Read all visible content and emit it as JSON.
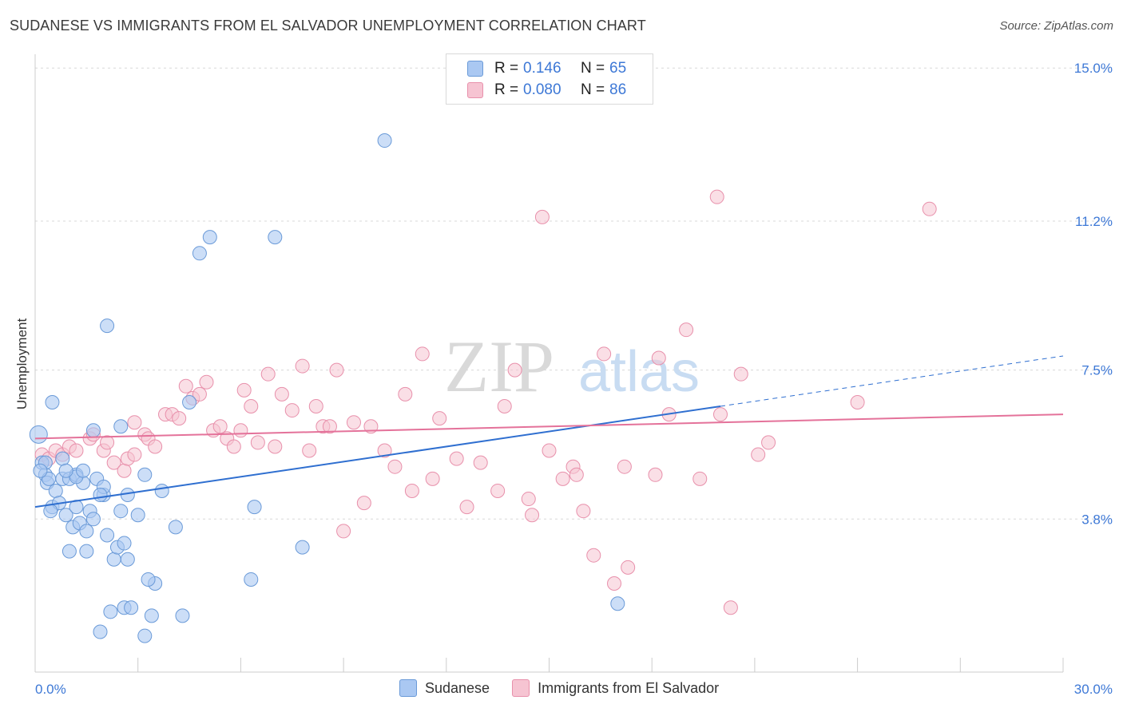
{
  "title": "SUDANESE VS IMMIGRANTS FROM EL SALVADOR UNEMPLOYMENT CORRELATION CHART",
  "source": "Source: ZipAtlas.com",
  "watermark_zip": "ZIP",
  "watermark_atlas": "atlas",
  "legend_top": {
    "rows": [
      {
        "r_label": "R =",
        "r_value": "0.146",
        "n_label": "N =",
        "n_value": "65"
      },
      {
        "r_label": "R =",
        "r_value": "0.080",
        "n_label": "N =",
        "n_value": "86"
      }
    ]
  },
  "legend_bottom": {
    "items": [
      {
        "label": "Sudanese"
      },
      {
        "label": "Immigrants from El Salvador"
      }
    ]
  },
  "colors": {
    "blue_fill": "#aac8f2",
    "blue_stroke": "#6a9ad8",
    "blue_line": "#2f6fd0",
    "pink_fill": "#f6c4d2",
    "pink_stroke": "#e890ab",
    "pink_line": "#e4729a",
    "tick_text": "#3d78d6",
    "grid": "#d8d8d8"
  },
  "chart_data": {
    "type": "scatter",
    "title": "SUDANESE VS IMMIGRANTS FROM EL SALVADOR UNEMPLOYMENT CORRELATION CHART",
    "xlabel": "",
    "ylabel": "Unemployment",
    "xlim": [
      0,
      30
    ],
    "ylim": [
      0,
      15.5
    ],
    "x_tick_labels": [
      "0.0%",
      "30.0%"
    ],
    "y_ticks": [
      3.8,
      7.5,
      11.2,
      15.0
    ],
    "y_tick_labels": [
      "3.8%",
      "7.5%",
      "11.2%",
      "15.0%"
    ],
    "grid": true,
    "legend_position": "top-center",
    "series": [
      {
        "name": "Sudanese",
        "color": "#aac8f2",
        "trend": {
          "x": [
            0,
            20
          ],
          "y": [
            4.1,
            6.6
          ],
          "extended_x": [
            20,
            30
          ],
          "extended_y": [
            6.6,
            7.85
          ]
        },
        "points": [
          [
            0.1,
            5.9
          ],
          [
            0.2,
            5.2
          ],
          [
            0.3,
            4.9
          ],
          [
            0.35,
            4.7
          ],
          [
            0.4,
            4.8
          ],
          [
            0.5,
            4.1
          ],
          [
            0.6,
            4.5
          ],
          [
            0.7,
            4.2
          ],
          [
            0.8,
            4.8
          ],
          [
            0.9,
            3.9
          ],
          [
            1.0,
            4.8
          ],
          [
            1.1,
            3.6
          ],
          [
            1.2,
            4.1
          ],
          [
            1.0,
            3.0
          ],
          [
            1.2,
            4.9
          ],
          [
            1.3,
            3.7
          ],
          [
            1.4,
            4.7
          ],
          [
            1.5,
            3.5
          ],
          [
            1.6,
            4.0
          ],
          [
            1.5,
            3.0
          ],
          [
            1.7,
            3.8
          ],
          [
            1.8,
            4.8
          ],
          [
            1.9,
            1.0
          ],
          [
            2.0,
            4.4
          ],
          [
            2.1,
            3.4
          ],
          [
            2.2,
            1.5
          ],
          [
            2.3,
            2.8
          ],
          [
            2.4,
            3.1
          ],
          [
            2.5,
            6.1
          ],
          [
            2.6,
            1.6
          ],
          [
            2.5,
            4.0
          ],
          [
            2.6,
            3.2
          ],
          [
            2.8,
            1.6
          ],
          [
            2.7,
            4.4
          ],
          [
            2.0,
            4.6
          ],
          [
            0.5,
            6.7
          ],
          [
            1.7,
            6.0
          ],
          [
            2.1,
            8.6
          ],
          [
            3.2,
            0.9
          ],
          [
            3.0,
            3.9
          ],
          [
            3.2,
            4.9
          ],
          [
            3.4,
            1.4
          ],
          [
            3.5,
            2.2
          ],
          [
            3.7,
            4.5
          ],
          [
            4.1,
            3.6
          ],
          [
            4.3,
            1.4
          ],
          [
            4.5,
            6.7
          ],
          [
            4.8,
            10.4
          ],
          [
            5.1,
            10.8
          ],
          [
            6.3,
            2.3
          ],
          [
            6.4,
            4.1
          ],
          [
            7.0,
            10.8
          ],
          [
            7.8,
            3.1
          ],
          [
            10.2,
            13.2
          ],
          [
            17.0,
            1.7
          ],
          [
            0.8,
            5.3
          ],
          [
            0.3,
            5.2
          ],
          [
            1.2,
            4.85
          ],
          [
            0.45,
            4.0
          ],
          [
            0.9,
            5.0
          ],
          [
            1.4,
            5.0
          ],
          [
            2.7,
            2.8
          ],
          [
            3.3,
            2.3
          ],
          [
            0.15,
            5.0
          ],
          [
            1.9,
            4.4
          ]
        ]
      },
      {
        "name": "Immigrants from El Salvador",
        "color": "#f6c4d2",
        "trend": {
          "x": [
            0,
            30
          ],
          "y": [
            5.8,
            6.4
          ]
        },
        "points": [
          [
            0.2,
            5.4
          ],
          [
            0.4,
            5.3
          ],
          [
            0.6,
            5.5
          ],
          [
            0.8,
            5.4
          ],
          [
            1.0,
            5.6
          ],
          [
            1.2,
            5.5
          ],
          [
            1.6,
            5.8
          ],
          [
            1.7,
            5.9
          ],
          [
            2.0,
            5.5
          ],
          [
            2.1,
            5.7
          ],
          [
            2.3,
            5.2
          ],
          [
            2.6,
            5.0
          ],
          [
            2.7,
            5.3
          ],
          [
            2.9,
            6.2
          ],
          [
            3.2,
            5.9
          ],
          [
            3.3,
            5.8
          ],
          [
            3.5,
            5.6
          ],
          [
            3.8,
            6.4
          ],
          [
            4.0,
            6.4
          ],
          [
            4.2,
            6.3
          ],
          [
            4.4,
            7.1
          ],
          [
            4.6,
            6.8
          ],
          [
            4.8,
            6.9
          ],
          [
            5.0,
            7.2
          ],
          [
            5.2,
            6.0
          ],
          [
            5.4,
            6.1
          ],
          [
            5.6,
            5.8
          ],
          [
            5.8,
            5.6
          ],
          [
            6.1,
            7.0
          ],
          [
            6.3,
            6.6
          ],
          [
            6.5,
            5.7
          ],
          [
            6.8,
            7.4
          ],
          [
            7.0,
            5.6
          ],
          [
            7.2,
            6.9
          ],
          [
            7.5,
            6.5
          ],
          [
            7.8,
            7.6
          ],
          [
            8.0,
            5.5
          ],
          [
            8.2,
            6.6
          ],
          [
            8.4,
            6.1
          ],
          [
            8.6,
            6.1
          ],
          [
            8.8,
            7.5
          ],
          [
            9.0,
            3.5
          ],
          [
            9.3,
            6.2
          ],
          [
            9.6,
            4.2
          ],
          [
            9.8,
            6.1
          ],
          [
            10.2,
            5.5
          ],
          [
            10.5,
            5.1
          ],
          [
            10.8,
            6.9
          ],
          [
            11.0,
            4.5
          ],
          [
            11.3,
            7.9
          ],
          [
            11.6,
            4.8
          ],
          [
            11.8,
            6.3
          ],
          [
            12.3,
            5.3
          ],
          [
            12.6,
            4.1
          ],
          [
            13.0,
            5.2
          ],
          [
            13.5,
            4.5
          ],
          [
            13.7,
            6.6
          ],
          [
            14.0,
            7.5
          ],
          [
            14.4,
            4.3
          ],
          [
            14.5,
            3.9
          ],
          [
            14.8,
            11.3
          ],
          [
            15.4,
            4.8
          ],
          [
            15.7,
            5.1
          ],
          [
            15.8,
            4.9
          ],
          [
            16.0,
            4.0
          ],
          [
            16.3,
            2.9
          ],
          [
            16.6,
            7.9
          ],
          [
            16.9,
            2.2
          ],
          [
            17.2,
            5.1
          ],
          [
            17.3,
            2.6
          ],
          [
            18.1,
            4.9
          ],
          [
            18.2,
            7.8
          ],
          [
            18.5,
            6.4
          ],
          [
            19.0,
            8.5
          ],
          [
            19.4,
            4.8
          ],
          [
            19.9,
            11.8
          ],
          [
            20.0,
            6.4
          ],
          [
            20.3,
            1.6
          ],
          [
            20.6,
            7.4
          ],
          [
            21.1,
            5.4
          ],
          [
            21.4,
            5.7
          ],
          [
            24.0,
            6.7
          ],
          [
            26.1,
            11.5
          ],
          [
            2.9,
            5.4
          ],
          [
            15.0,
            5.5
          ],
          [
            6.0,
            6.0
          ]
        ]
      }
    ]
  }
}
